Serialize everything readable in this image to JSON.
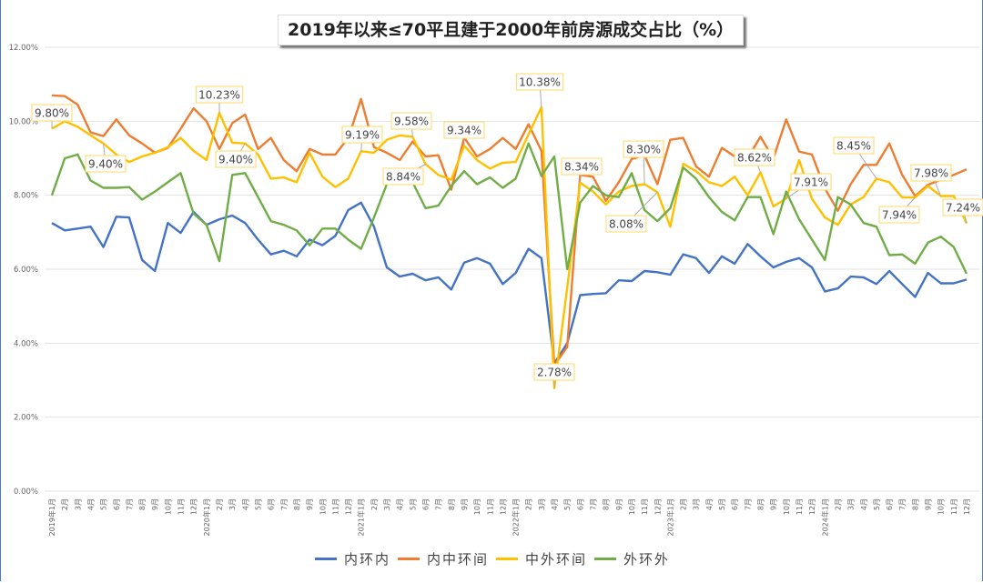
{
  "chart_data": {
    "type": "line",
    "title": "2019年以来≤70平且建于2000年前房源成交占比（%）",
    "xlabel": "",
    "ylabel": "",
    "ylim": [
      0,
      12
    ],
    "yticks": [
      "0.00%",
      "2.00%",
      "4.00%",
      "6.00%",
      "8.00%",
      "10.00%",
      "12.00%"
    ],
    "ytick_values": [
      0,
      2,
      4,
      6,
      8,
      10,
      12
    ],
    "grid": true,
    "legend_position": "bottom",
    "categories": [
      "2019年1月",
      "2月",
      "3月",
      "4月",
      "5月",
      "6月",
      "7月",
      "8月",
      "9月",
      "10月",
      "11月",
      "12月",
      "2020年1月",
      "2月",
      "3月",
      "4月",
      "5月",
      "6月",
      "7月",
      "8月",
      "9月",
      "10月",
      "11月",
      "12月",
      "2021年1月",
      "2月",
      "3月",
      "4月",
      "5月",
      "6月",
      "7月",
      "8月",
      "9月",
      "10月",
      "11月",
      "12月",
      "2022年1月",
      "2月",
      "3月",
      "4月",
      "5月",
      "6月",
      "7月",
      "8月",
      "9月",
      "10月",
      "11月",
      "12月",
      "2023年1月",
      "2月",
      "3月",
      "4月",
      "5月",
      "6月",
      "7月",
      "8月",
      "9月",
      "10月",
      "11月",
      "12月",
      "2024年1月",
      "2月",
      "3月",
      "4月",
      "5月",
      "6月",
      "7月",
      "8月",
      "9月",
      "10月",
      "11月",
      "12月"
    ],
    "series": [
      {
        "name": "内环内",
        "color": "#4472C4",
        "values": [
          7.25,
          7.05,
          7.1,
          7.15,
          6.6,
          7.42,
          7.4,
          6.25,
          5.95,
          7.25,
          6.98,
          7.55,
          7.2,
          7.35,
          7.45,
          7.25,
          6.8,
          6.4,
          6.5,
          6.35,
          6.8,
          6.65,
          6.9,
          7.6,
          7.8,
          7.15,
          6.05,
          5.8,
          5.88,
          5.7,
          5.78,
          5.45,
          6.18,
          6.3,
          6.15,
          5.6,
          5.9,
          6.55,
          6.3,
          3.45,
          4.0,
          5.3,
          5.33,
          5.35,
          5.7,
          5.68,
          5.95,
          5.92,
          5.85,
          6.4,
          6.3,
          5.9,
          6.35,
          6.15,
          6.68,
          6.35,
          6.05,
          6.2,
          6.3,
          6.05,
          5.4,
          5.48,
          5.8,
          5.78,
          5.6,
          5.95,
          5.6,
          5.25,
          5.9,
          5.62,
          5.62,
          5.72
        ]
      },
      {
        "name": "内中环间",
        "color": "#ED7D31",
        "values": [
          10.7,
          10.68,
          10.45,
          9.7,
          9.6,
          10.05,
          9.62,
          9.4,
          9.15,
          9.28,
          9.8,
          10.35,
          10.0,
          9.25,
          9.95,
          10.18,
          9.25,
          9.55,
          8.95,
          8.65,
          9.25,
          9.1,
          9.1,
          9.55,
          10.6,
          9.3,
          9.15,
          8.95,
          9.45,
          9.05,
          9.08,
          8.15,
          9.56,
          9.05,
          9.25,
          9.55,
          9.25,
          9.92,
          9.2,
          3.4,
          3.9,
          8.55,
          8.5,
          7.85,
          8.35,
          8.98,
          9.08,
          8.3,
          9.5,
          9.55,
          8.78,
          8.5,
          9.28,
          9.05,
          9.0,
          9.58,
          9.0,
          10.05,
          9.18,
          9.1,
          8.18,
          7.58,
          8.3,
          8.82,
          8.82,
          9.4,
          8.55,
          7.98,
          8.28,
          8.42,
          8.55,
          8.7
        ]
      },
      {
        "name": "中外环间",
        "color": "#FFC000",
        "values": [
          9.8,
          10.0,
          9.85,
          9.62,
          9.4,
          9.1,
          8.9,
          9.05,
          9.15,
          9.3,
          9.55,
          9.2,
          8.95,
          10.23,
          9.42,
          9.4,
          9.1,
          8.45,
          8.48,
          8.35,
          9.15,
          8.5,
          8.22,
          8.45,
          9.19,
          9.15,
          9.5,
          9.62,
          9.58,
          8.84,
          8.55,
          8.42,
          9.34,
          8.95,
          8.72,
          8.88,
          8.9,
          9.65,
          10.38,
          2.78,
          5.5,
          8.34,
          8.1,
          7.75,
          8.1,
          8.25,
          8.3,
          8.08,
          7.15,
          8.85,
          8.65,
          8.35,
          8.25,
          8.5,
          8.0,
          8.62,
          7.7,
          7.91,
          8.95,
          7.9,
          7.4,
          7.2,
          7.75,
          7.95,
          8.45,
          8.35,
          7.94,
          7.94,
          8.25,
          7.98,
          7.98,
          7.24
        ]
      },
      {
        "name": "外环外",
        "color": "#70AD47",
        "values": [
          8.0,
          9.0,
          9.1,
          8.4,
          8.2,
          8.2,
          8.22,
          7.88,
          8.1,
          8.35,
          8.6,
          7.5,
          7.2,
          6.22,
          8.55,
          8.6,
          7.95,
          7.3,
          7.2,
          7.05,
          6.65,
          7.1,
          7.1,
          6.8,
          6.55,
          7.4,
          8.3,
          8.4,
          8.35,
          7.65,
          7.72,
          8.25,
          8.65,
          8.3,
          8.48,
          8.2,
          8.45,
          9.4,
          8.52,
          9.05,
          6.0,
          7.8,
          8.25,
          8.0,
          7.95,
          8.6,
          7.6,
          7.3,
          7.65,
          8.75,
          8.45,
          7.95,
          7.55,
          7.32,
          7.95,
          7.95,
          6.95,
          8.1,
          7.35,
          6.8,
          6.25,
          7.95,
          7.75,
          7.25,
          7.15,
          6.38,
          6.4,
          6.15,
          6.72,
          6.88,
          6.6,
          5.88
        ]
      }
    ],
    "annotations": [
      {
        "series": "中外环间",
        "index": 0,
        "text": "9.80%"
      },
      {
        "series": "中外环间",
        "index": 4,
        "text": "9.40%"
      },
      {
        "series": "中外环间",
        "index": 13,
        "text": "10.23%"
      },
      {
        "series": "中外环间",
        "index": 15,
        "text": "9.40%"
      },
      {
        "series": "中外环间",
        "index": 24,
        "text": "9.19%"
      },
      {
        "series": "中外环间",
        "index": 29,
        "text": "8.84%"
      },
      {
        "series": "中外环间",
        "index": 28,
        "text": "9.58%"
      },
      {
        "series": "中外环间",
        "index": 32,
        "text": "9.34%"
      },
      {
        "series": "中外环间",
        "index": 38,
        "text": "10.38%"
      },
      {
        "series": "中外环间",
        "index": 39,
        "text": "2.78%"
      },
      {
        "series": "中外环间",
        "index": 41,
        "text": "8.34%"
      },
      {
        "series": "中外环间",
        "index": 46,
        "text": "8.30%"
      },
      {
        "series": "中外环间",
        "index": 47,
        "text": "8.08%"
      },
      {
        "series": "中外环间",
        "index": 55,
        "text": "8.62%"
      },
      {
        "series": "中外环间",
        "index": 57,
        "text": "7.91%"
      },
      {
        "series": "中外环间",
        "index": 64,
        "text": "8.45%"
      },
      {
        "series": "中外环间",
        "index": 67,
        "text": "7.94%"
      },
      {
        "series": "中外环间",
        "index": 69,
        "text": "7.98%"
      },
      {
        "series": "中外环间",
        "index": 71,
        "text": "7.24%"
      }
    ]
  }
}
